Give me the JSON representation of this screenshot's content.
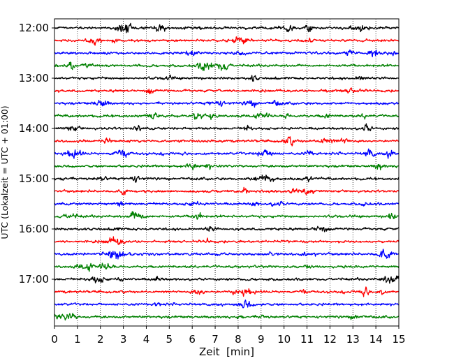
{
  "chart_data": {
    "type": "line",
    "xlabel": "Zeit  [min]",
    "ylabel": "UTC (Lokalzeit = UTC + 01:00)",
    "xlim": [
      0,
      15
    ],
    "x_ticks": [
      "0",
      "1",
      "2",
      "3",
      "4",
      "5",
      "6",
      "7",
      "8",
      "9",
      "10",
      "11",
      "12",
      "13",
      "14",
      "15"
    ],
    "y_ticks": [
      "12:00",
      "13:00",
      "14:00",
      "15:00",
      "16:00",
      "17:00"
    ],
    "traces_per_hour": 4,
    "trace_minutes": 15,
    "trace_colors": [
      "#000000",
      "#ff0000",
      "#0000ff",
      "#008000"
    ],
    "traces": [
      "12:00",
      "12:15",
      "12:30",
      "12:45",
      "13:00",
      "13:15",
      "13:30",
      "13:45",
      "14:00",
      "14:15",
      "14:30",
      "14:45",
      "15:00",
      "15:15",
      "15:30",
      "15:45",
      "16:00",
      "16:15",
      "16:30",
      "16:45",
      "17:00",
      "17:15",
      "17:30",
      "17:45"
    ],
    "grid": {
      "x": true,
      "y": false,
      "style": "dotted"
    }
  }
}
